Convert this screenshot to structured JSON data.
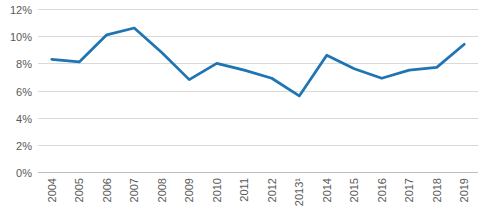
{
  "chart_data": {
    "type": "line",
    "categories": [
      "2004",
      "2005",
      "2006",
      "2007",
      "2008",
      "2009",
      "2010",
      "2011",
      "2012",
      "2013¹",
      "2014",
      "2015",
      "2016",
      "2017",
      "2018",
      "2019"
    ],
    "values": [
      8.3,
      8.1,
      10.1,
      10.6,
      8.8,
      6.8,
      8.0,
      7.5,
      6.9,
      5.6,
      8.6,
      7.6,
      6.9,
      7.5,
      7.7,
      9.4
    ],
    "color": "#1f74b4",
    "ylim": [
      0,
      12
    ],
    "yticks": [
      {
        "value": 0,
        "label": "0%"
      },
      {
        "value": 2,
        "label": "2%"
      },
      {
        "value": 4,
        "label": "4%"
      },
      {
        "value": 6,
        "label": "6%"
      },
      {
        "value": 8,
        "label": "8%"
      },
      {
        "value": 10,
        "label": "10%"
      },
      {
        "value": 12,
        "label": "12%"
      }
    ],
    "grid": true
  }
}
